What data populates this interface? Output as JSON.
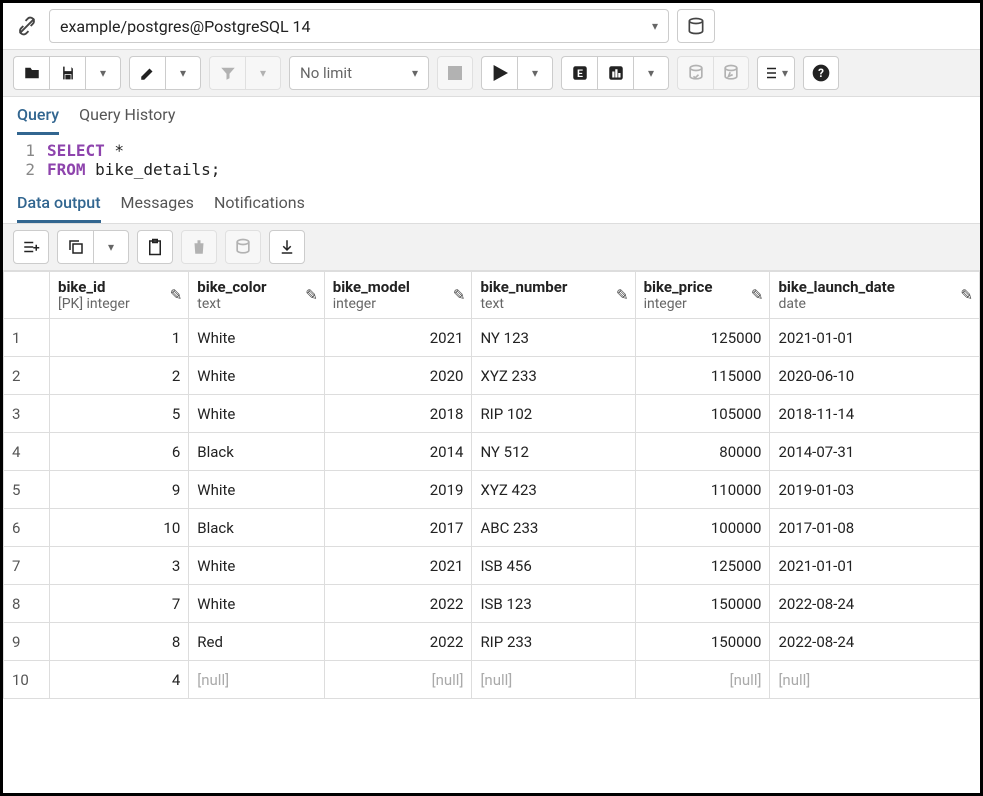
{
  "connection": {
    "label": "example/postgres@PostgreSQL 14"
  },
  "toolbar": {
    "limit_label": "No limit"
  },
  "query_tabs": [
    {
      "label": "Query",
      "active": true
    },
    {
      "label": "Query History",
      "active": false
    }
  ],
  "sql": {
    "lines": [
      {
        "n": "1",
        "kw": "SELECT",
        "rest": " *"
      },
      {
        "n": "2",
        "kw": "FROM",
        "rest": " bike_details;"
      }
    ]
  },
  "output_tabs": [
    {
      "label": "Data output",
      "active": true
    },
    {
      "label": "Messages",
      "active": false
    },
    {
      "label": "Notifications",
      "active": false
    }
  ],
  "table": {
    "columns": [
      {
        "name": "bike_id",
        "type": "[PK] integer",
        "align": "num"
      },
      {
        "name": "bike_color",
        "type": "text",
        "align": "txt"
      },
      {
        "name": "bike_model",
        "type": "integer",
        "align": "num"
      },
      {
        "name": "bike_number",
        "type": "text",
        "align": "txt"
      },
      {
        "name": "bike_price",
        "type": "integer",
        "align": "num"
      },
      {
        "name": "bike_launch_date",
        "type": "date",
        "align": "txt"
      }
    ],
    "rows": [
      {
        "n": "1",
        "c": [
          "1",
          "White",
          "2021",
          "NY 123",
          "125000",
          "2021-01-01"
        ]
      },
      {
        "n": "2",
        "c": [
          "2",
          "White",
          "2020",
          "XYZ 233",
          "115000",
          "2020-06-10"
        ]
      },
      {
        "n": "3",
        "c": [
          "5",
          "White",
          "2018",
          "RIP 102",
          "105000",
          "2018-11-14"
        ]
      },
      {
        "n": "4",
        "c": [
          "6",
          "Black",
          "2014",
          "NY 512",
          "80000",
          "2014-07-31"
        ]
      },
      {
        "n": "5",
        "c": [
          "9",
          "White",
          "2019",
          "XYZ 423",
          "110000",
          "2019-01-03"
        ]
      },
      {
        "n": "6",
        "c": [
          "10",
          "Black",
          "2017",
          "ABC 233",
          "100000",
          "2017-01-08"
        ]
      },
      {
        "n": "7",
        "c": [
          "3",
          "White",
          "2021",
          "ISB 456",
          "125000",
          "2021-01-01"
        ]
      },
      {
        "n": "8",
        "c": [
          "7",
          "White",
          "2022",
          "ISB 123",
          "150000",
          "2022-08-24"
        ]
      },
      {
        "n": "9",
        "c": [
          "8",
          "Red",
          "2022",
          "RIP 233",
          "150000",
          "2022-08-24"
        ]
      },
      {
        "n": "10",
        "c": [
          "4",
          null,
          null,
          null,
          null,
          null
        ]
      }
    ],
    "null_label": "[null]"
  }
}
